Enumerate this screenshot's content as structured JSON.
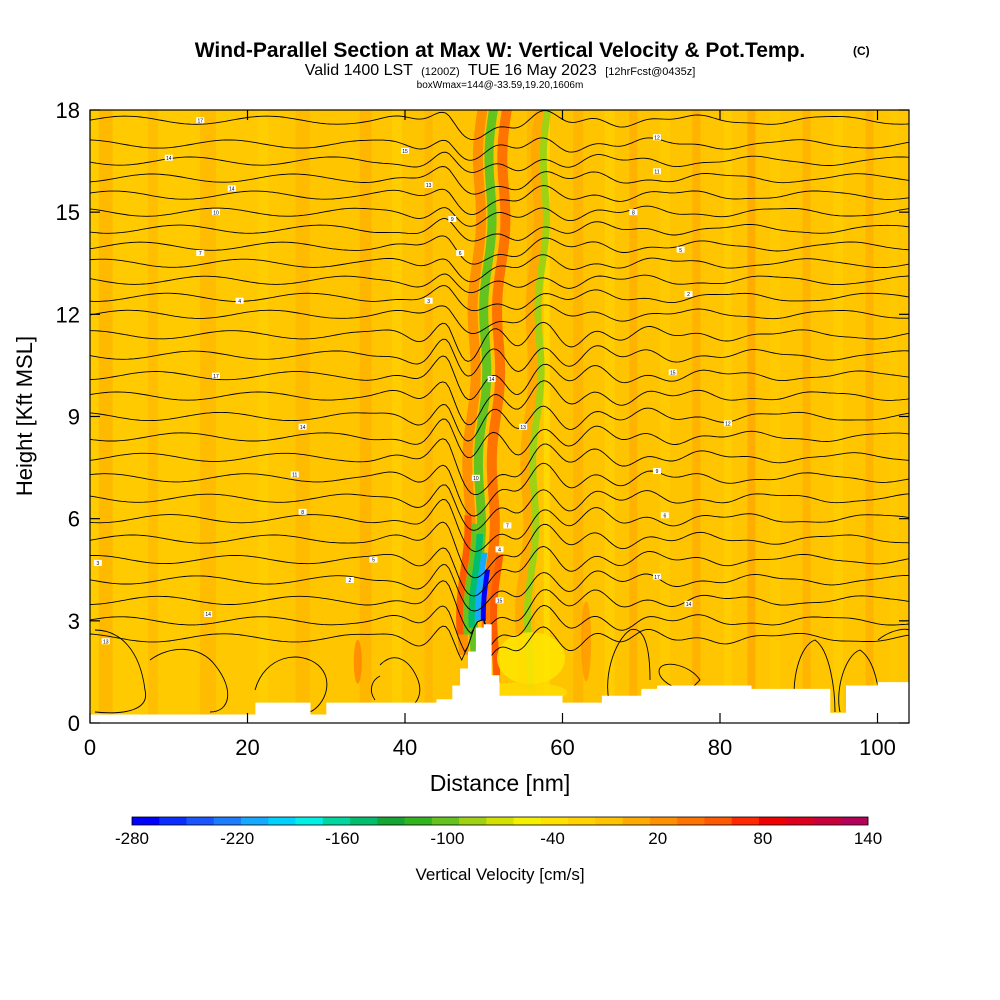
{
  "chart_data": {
    "type": "heatmap",
    "title": "Wind-Parallel Section at Max W: Vertical Velocity & Pot.Temp.",
    "title_mark": "(C)",
    "subtitle": {
      "valid": "Valid 1400 LST",
      "utc": "(1200Z)",
      "date": "TUE 16 May 2023",
      "fcst": "[12hrFcst@0435z]"
    },
    "box_info": "boxWmax=144@-33.59,19.20,1606m",
    "xlabel": "Distance [nm]",
    "ylabel": "Height [Kft MSL]",
    "xlim": [
      0,
      104
    ],
    "ylim": [
      0,
      18
    ],
    "x_ticks": [
      "0",
      "20",
      "40",
      "60",
      "80",
      "100"
    ],
    "x_tick_values": [
      0,
      20,
      40,
      60,
      80,
      100
    ],
    "y_ticks": [
      "0",
      "3",
      "6",
      "9",
      "12",
      "15",
      "18"
    ],
    "y_tick_values": [
      0,
      3,
      6,
      9,
      12,
      15,
      18
    ],
    "colorbar": {
      "label": "Vertical Velocity [cm/s]",
      "range": [
        -280,
        140
      ],
      "step": 20,
      "tick_labels": [
        "-280",
        "-220",
        "-160",
        "-100",
        "-40",
        "20",
        "80",
        "140"
      ],
      "tick_values": [
        -280,
        -220,
        -160,
        -100,
        -40,
        20,
        80,
        140
      ],
      "colors": [
        "#0000ff",
        "#0a2eff",
        "#1a56ff",
        "#1e7dff",
        "#14aaff",
        "#00d2ff",
        "#00f0e6",
        "#00d7a0",
        "#00be6e",
        "#14a532",
        "#32b41e",
        "#64c31e",
        "#a0d214",
        "#d2e100",
        "#f5f000",
        "#ffe100",
        "#ffd200",
        "#ffc300",
        "#ffaa00",
        "#ff9100",
        "#ff7300",
        "#ff5a00",
        "#ff2800",
        "#f00000",
        "#dc001e",
        "#c8003c",
        "#b4005a"
      ]
    },
    "background_w_cm_s": 0,
    "updraft_core": {
      "x_nm": 48.5,
      "w_max_cm_s": 144,
      "w_min_cm_s": -280,
      "height_range_kft": [
        2.5,
        7.5
      ]
    },
    "terrain_kft": {
      "x": [
        0,
        10,
        20,
        21,
        27,
        28,
        29,
        30,
        35,
        40,
        44,
        46,
        47,
        48,
        49,
        50,
        51,
        52,
        53,
        60,
        65,
        70,
        72,
        76,
        80,
        84,
        88,
        92,
        94,
        95,
        96,
        100,
        104
      ],
      "y": [
        0.25,
        0.25,
        0.25,
        0.6,
        0.6,
        0.25,
        0.25,
        0.6,
        0.6,
        0.6,
        0.7,
        1.1,
        1.6,
        2.1,
        2.8,
        2.9,
        1.4,
        0.8,
        0.8,
        0.6,
        0.8,
        1.0,
        1.1,
        1.1,
        1.1,
        1.0,
        1.0,
        1.0,
        0.3,
        0.3,
        1.1,
        1.2,
        1.3
      ]
    },
    "theta_contours": {
      "label_values": [
        "17",
        "14",
        "15",
        "14",
        "13",
        "12",
        "11",
        "10",
        "9",
        "8",
        "7",
        "6",
        "5",
        "4",
        "3",
        "2"
      ],
      "levels_kft": [
        17.7,
        17.0,
        16.5,
        16.0,
        15.5,
        15.0,
        14.5,
        14.0,
        13.5,
        13.0,
        12.5,
        12.0,
        11.4,
        10.8,
        10.2,
        9.6,
        9.0,
        8.4,
        7.8,
        7.2,
        6.6,
        6.0,
        5.4,
        4.8,
        4.2,
        3.6,
        3.0,
        2.5
      ],
      "wave_x_nm": 49.5,
      "wave_amplitude_kft": 0.6,
      "dip_at_ridge_kft": 1.2
    }
  }
}
